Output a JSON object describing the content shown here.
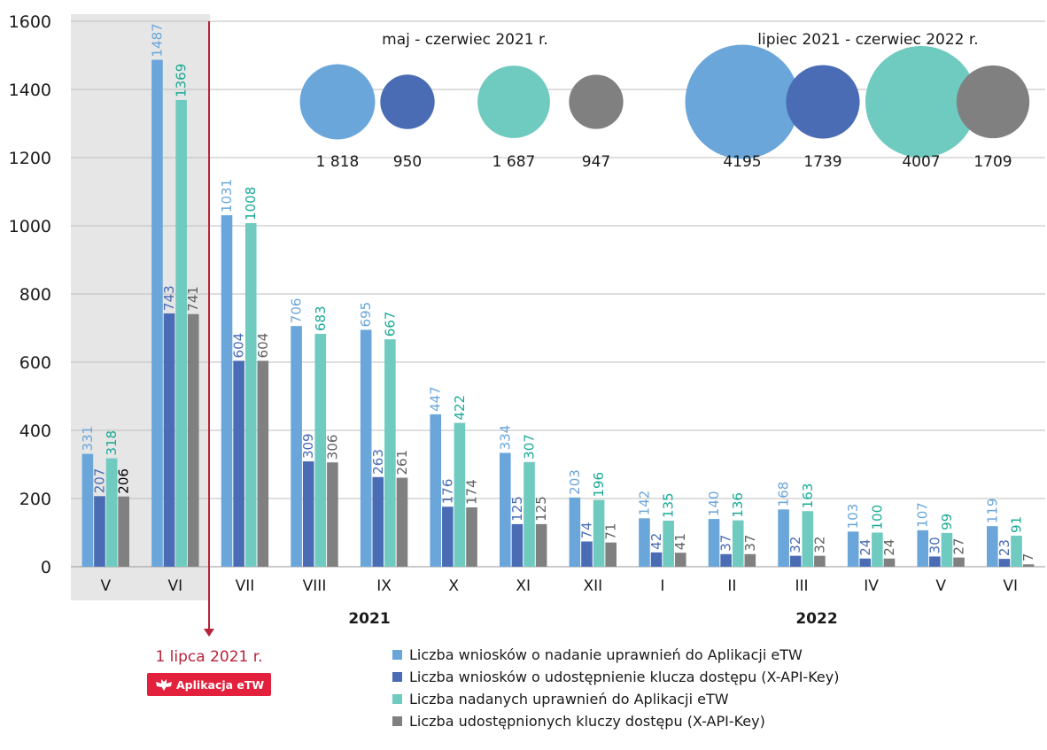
{
  "chart_data": {
    "type": "bar",
    "ylim": [
      0,
      1600
    ],
    "yticks": [
      0,
      200,
      400,
      600,
      800,
      1000,
      1200,
      1400,
      1600
    ],
    "categories": [
      "V",
      "VI",
      "VII",
      "VIII",
      "IX",
      "X",
      "XI",
      "XII",
      "I",
      "II",
      "III",
      "IV",
      "V",
      "VI"
    ],
    "years": [
      "2021",
      "2022"
    ],
    "series": [
      {
        "name": "Liczba wniosków o nadanie uprawnień do Aplikacji eTW",
        "color": "#6aa6da",
        "values": [
          331,
          1487,
          1031,
          706,
          695,
          447,
          334,
          203,
          142,
          140,
          168,
          103,
          107,
          119
        ]
      },
      {
        "name": "Liczba wniosków o udostępnienie klucza dostępu (X-API-Key)",
        "color": "#4a6cb4",
        "values": [
          207,
          743,
          604,
          309,
          263,
          176,
          125,
          74,
          42,
          37,
          32,
          24,
          30,
          23
        ]
      },
      {
        "name": "Liczba nadanych uprawnień do Aplikacji eTW",
        "color": "#6fcabf",
        "values": [
          318,
          1369,
          1008,
          683,
          667,
          422,
          307,
          196,
          135,
          136,
          163,
          100,
          99,
          91
        ]
      },
      {
        "name": "Liczba udostępnionych kluczy dostępu (X-API-Key)",
        "color": "#808080",
        "values": [
          206,
          741,
          604,
          306,
          261,
          174,
          125,
          71,
          41,
          37,
          32,
          24,
          27,
          7
        ]
      }
    ],
    "label_colors": [
      "#6aa6da",
      "#4a6cb4",
      "#1aaa96",
      "#606060"
    ],
    "first_period_label_colors": [
      "#6aa6da",
      "#4a6cb4",
      "#1aaa96",
      "#000000"
    ],
    "legend_position": "bottom",
    "summary_groups": [
      {
        "title": "maj - czerwiec 2021 r.",
        "values": [
          "1 818",
          "950",
          "1 687",
          "947"
        ],
        "sizes": [
          1818,
          950,
          1687,
          947
        ]
      },
      {
        "title": "lipiec 2021 - czerwiec 2022 r.",
        "values": [
          "4195",
          "1739",
          "4007",
          "1709"
        ],
        "sizes": [
          4195,
          1739,
          4007,
          1709
        ]
      }
    ],
    "marker": {
      "label": "1 lipca 2021 r.",
      "badge_text": "Aplikacja eTW",
      "color": "#b8233a",
      "badge_color": "#e3213c"
    },
    "shaded_categories": [
      "V",
      "VI"
    ],
    "grid": true
  }
}
